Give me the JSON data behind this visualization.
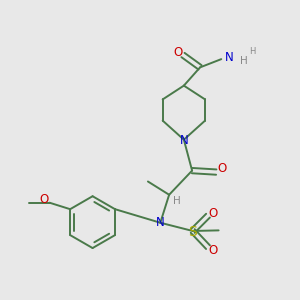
{
  "background_color": "#e8e8e8",
  "bond_color": "#4a7a4a",
  "atom_colors": {
    "O": "#cc0000",
    "N": "#0000cc",
    "S": "#aaaa00",
    "H": "#888888",
    "C": "#4a7a4a"
  },
  "figsize": [
    3.0,
    3.0
  ],
  "dpi": 100
}
